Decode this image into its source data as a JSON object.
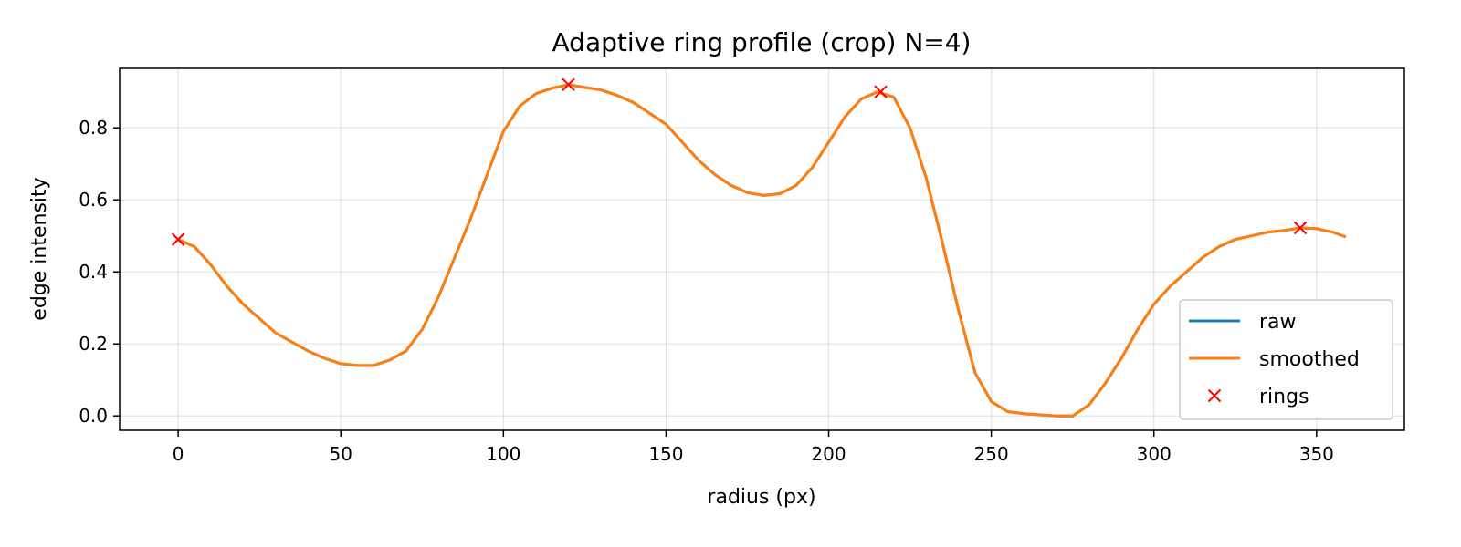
{
  "chart_data": {
    "type": "line",
    "title": "Adaptive ring profile (crop) N=4)",
    "xlabel": "radius (px)",
    "ylabel": "edge intensity",
    "xlim": [
      -18,
      377
    ],
    "ylim": [
      -0.04,
      0.965
    ],
    "xticks": [
      0,
      50,
      100,
      150,
      200,
      250,
      300,
      350
    ],
    "yticks": [
      0.0,
      0.2,
      0.4,
      0.6,
      0.8
    ],
    "ytick_labels": [
      "0.0",
      "0.2",
      "0.4",
      "0.6",
      "0.8"
    ],
    "grid": true,
    "legend_position": "lower-right",
    "series": [
      {
        "name": "raw",
        "kind": "line",
        "color": "#1f77b4",
        "x": [
          0,
          5,
          10,
          15,
          20,
          25,
          30,
          35,
          40,
          45,
          50,
          55,
          60,
          65,
          70,
          75,
          80,
          85,
          90,
          95,
          100,
          105,
          110,
          115,
          120,
          125,
          130,
          135,
          140,
          145,
          150,
          155,
          160,
          165,
          170,
          175,
          180,
          185,
          190,
          195,
          200,
          205,
          210,
          215,
          220,
          225,
          230,
          235,
          240,
          245,
          250,
          255,
          260,
          265,
          270,
          275,
          280,
          285,
          290,
          295,
          300,
          305,
          310,
          315,
          320,
          325,
          330,
          335,
          340,
          345,
          350,
          355,
          359
        ],
        "y": [
          0.49,
          0.47,
          0.42,
          0.36,
          0.31,
          0.27,
          0.23,
          0.205,
          0.18,
          0.16,
          0.145,
          0.14,
          0.14,
          0.155,
          0.18,
          0.24,
          0.33,
          0.44,
          0.55,
          0.67,
          0.79,
          0.86,
          0.895,
          0.91,
          0.92,
          0.912,
          0.905,
          0.89,
          0.87,
          0.84,
          0.81,
          0.76,
          0.71,
          0.67,
          0.64,
          0.62,
          0.612,
          0.617,
          0.64,
          0.69,
          0.76,
          0.83,
          0.88,
          0.9,
          0.885,
          0.8,
          0.66,
          0.48,
          0.29,
          0.12,
          0.04,
          0.012,
          0.006,
          0.003,
          0.0,
          0.0,
          0.03,
          0.09,
          0.16,
          0.24,
          0.31,
          0.36,
          0.4,
          0.44,
          0.47,
          0.49,
          0.5,
          0.51,
          0.515,
          0.522,
          0.52,
          0.51,
          0.497
        ]
      },
      {
        "name": "smoothed",
        "kind": "line",
        "color": "#ff7f0e",
        "x": [
          0,
          5,
          10,
          15,
          20,
          25,
          30,
          35,
          40,
          45,
          50,
          55,
          60,
          65,
          70,
          75,
          80,
          85,
          90,
          95,
          100,
          105,
          110,
          115,
          120,
          125,
          130,
          135,
          140,
          145,
          150,
          155,
          160,
          165,
          170,
          175,
          180,
          185,
          190,
          195,
          200,
          205,
          210,
          215,
          220,
          225,
          230,
          235,
          240,
          245,
          250,
          255,
          260,
          265,
          270,
          275,
          280,
          285,
          290,
          295,
          300,
          305,
          310,
          315,
          320,
          325,
          330,
          335,
          340,
          345,
          350,
          355,
          359
        ],
        "y": [
          0.49,
          0.47,
          0.42,
          0.36,
          0.31,
          0.27,
          0.23,
          0.205,
          0.18,
          0.16,
          0.145,
          0.14,
          0.14,
          0.155,
          0.18,
          0.24,
          0.33,
          0.44,
          0.55,
          0.67,
          0.79,
          0.86,
          0.895,
          0.91,
          0.92,
          0.912,
          0.905,
          0.89,
          0.87,
          0.84,
          0.81,
          0.76,
          0.71,
          0.67,
          0.64,
          0.62,
          0.612,
          0.617,
          0.64,
          0.69,
          0.76,
          0.83,
          0.88,
          0.9,
          0.885,
          0.8,
          0.66,
          0.48,
          0.29,
          0.12,
          0.04,
          0.012,
          0.006,
          0.003,
          0.0,
          0.0,
          0.03,
          0.09,
          0.16,
          0.24,
          0.31,
          0.36,
          0.4,
          0.44,
          0.47,
          0.49,
          0.5,
          0.51,
          0.515,
          0.522,
          0.52,
          0.51,
          0.497
        ]
      },
      {
        "name": "rings",
        "kind": "marker",
        "marker": "x",
        "color": "#ff0000",
        "x": [
          0,
          120,
          216,
          345
        ],
        "y": [
          0.49,
          0.92,
          0.9,
          0.522
        ]
      }
    ]
  }
}
